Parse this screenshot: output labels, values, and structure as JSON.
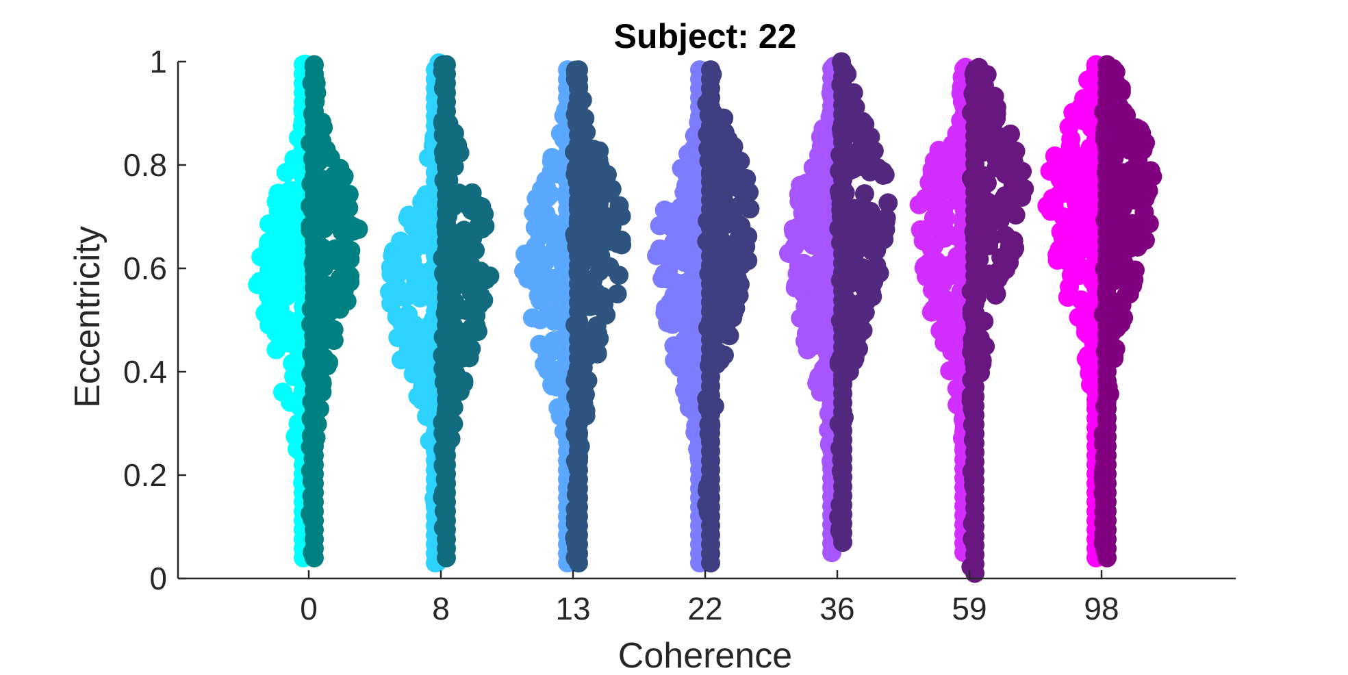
{
  "chart_data": {
    "type": "scatter",
    "subtype": "split-violin-swarm",
    "title": "Subject: 22",
    "xlabel": "Coherence",
    "ylabel": "Eccentricity",
    "categories": [
      "0",
      "8",
      "13",
      "22",
      "36",
      "59",
      "98"
    ],
    "xtick_labels": [
      "0",
      "8",
      "13",
      "22",
      "36",
      "59",
      "98"
    ],
    "ylim": [
      0,
      1
    ],
    "yticks": [
      0,
      0.2,
      0.4,
      0.6,
      0.8,
      1
    ],
    "ytick_labels": [
      "0",
      "0.2",
      "0.4",
      "0.6",
      "0.8",
      "1"
    ],
    "grid": false,
    "legend": "none",
    "groups": [
      {
        "category": "0",
        "left": {
          "color": "#00FFFF",
          "range": [
            0.04,
            1.0
          ],
          "mode": 0.6,
          "peak_width": 0.42
        },
        "right": {
          "color": "#008080",
          "range": [
            0.04,
            1.0
          ],
          "mode": 0.68,
          "peak_width": 0.4
        }
      },
      {
        "category": "8",
        "left": {
          "color": "#2ED2FF",
          "range": [
            0.03,
            1.0
          ],
          "mode": 0.57,
          "peak_width": 0.42
        },
        "right": {
          "color": "#136B80",
          "range": [
            0.04,
            1.0
          ],
          "mode": 0.63,
          "peak_width": 0.4
        }
      },
      {
        "category": "13",
        "left": {
          "color": "#5AA8FF",
          "range": [
            0.03,
            1.0
          ],
          "mode": 0.63,
          "peak_width": 0.4
        },
        "right": {
          "color": "#2D5580",
          "range": [
            0.03,
            1.0
          ],
          "mode": 0.66,
          "peak_width": 0.42
        }
      },
      {
        "category": "22",
        "left": {
          "color": "#7C7CFF",
          "range": [
            0.03,
            1.0
          ],
          "mode": 0.62,
          "peak_width": 0.4
        },
        "right": {
          "color": "#3E3E80",
          "range": [
            0.03,
            1.0
          ],
          "mode": 0.7,
          "peak_width": 0.38
        }
      },
      {
        "category": "36",
        "left": {
          "color": "#A655FF",
          "range": [
            0.05,
            1.0
          ],
          "mode": 0.65,
          "peak_width": 0.4
        },
        "right": {
          "color": "#53297F",
          "range": [
            0.07,
            1.0
          ],
          "mode": 0.72,
          "peak_width": 0.42
        }
      },
      {
        "category": "59",
        "left": {
          "color": "#D22EFF",
          "range": [
            0.05,
            1.0
          ],
          "mode": 0.68,
          "peak_width": 0.42
        },
        "right": {
          "color": "#691780",
          "range": [
            0.01,
            1.0
          ],
          "mode": 0.76,
          "peak_width": 0.44
        }
      },
      {
        "category": "98",
        "left": {
          "color": "#FF00FF",
          "range": [
            0.04,
            1.0
          ],
          "mode": 0.74,
          "peak_width": 0.44
        },
        "right": {
          "color": "#800080",
          "range": [
            0.04,
            1.0
          ],
          "mode": 0.76,
          "peak_width": 0.42
        }
      }
    ]
  }
}
